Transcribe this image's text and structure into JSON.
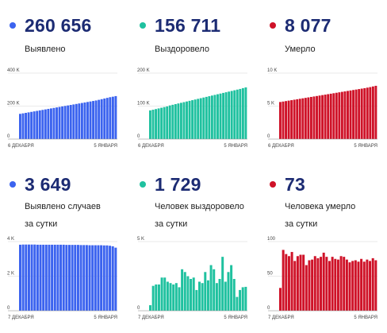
{
  "colors": {
    "blue": "#3b63ef",
    "green": "#1fc19f",
    "red": "#cf1228",
    "number": "#1c2b73",
    "grid": "#d5d5d5"
  },
  "panels": [
    {
      "value": "260 656",
      "label_lines": [
        "Выявлено"
      ],
      "color": "#3b63ef",
      "chart_data": {
        "type": "bar",
        "series": [
          {
            "values": [
              153000,
              156000,
              159000,
              162000,
              165000,
              168000,
              171000,
              174000,
              177000,
              180000,
              183000,
              186000,
              189000,
              192000,
              195000,
              198000,
              201000,
              204000,
              207000,
              210000,
              213000,
              216000,
              219000,
              222000,
              225000,
              228000,
              231000,
              234000,
              238000,
              242000,
              246000,
              250000,
              254000,
              257000,
              260656
            ]
          }
        ],
        "ylim": [
          0,
          400000
        ],
        "yticks": [
          {
            "v": 0,
            "t": "0"
          },
          {
            "v": 200000,
            "t": "200 K"
          },
          {
            "v": 400000,
            "t": "400 K"
          }
        ],
        "xlabels": [
          "6 ДЕКАБРЯ",
          "5 ЯНВАРЯ"
        ],
        "color": "#3b63ef"
      }
    },
    {
      "value": "156 711",
      "label_lines": [
        "Выздоровело"
      ],
      "color": "#1fc19f",
      "chart_data": {
        "type": "bar",
        "series": [
          {
            "values": [
              87000,
              89000,
              91000,
              93000,
              95000,
              97000,
              99000,
              102000,
              104000,
              106000,
              108000,
              110000,
              112000,
              114000,
              116000,
              118000,
              120000,
              122000,
              124000,
              126000,
              128000,
              130000,
              132000,
              134000,
              136000,
              138000,
              140000,
              142000,
              144000,
              146000,
              148000,
              150000,
              152000,
              154500,
              156711
            ]
          }
        ],
        "ylim": [
          0,
          200000
        ],
        "yticks": [
          {
            "v": 0,
            "t": "0"
          },
          {
            "v": 100000,
            "t": "100 K"
          },
          {
            "v": 200000,
            "t": "200 K"
          }
        ],
        "xlabels": [
          "6 ДЕКАБРЯ",
          "5 ЯНВАРЯ"
        ],
        "color": "#1fc19f"
      }
    },
    {
      "value": "8 077",
      "label_lines": [
        "Умерло"
      ],
      "color": "#cf1228",
      "chart_data": {
        "type": "bar",
        "series": [
          {
            "values": [
              5620,
              5690,
              5760,
              5830,
              5900,
              5970,
              6040,
              6110,
              6180,
              6250,
              6320,
              6390,
              6460,
              6530,
              6600,
              6670,
              6740,
              6810,
              6880,
              6950,
              7020,
              7090,
              7160,
              7230,
              7300,
              7370,
              7440,
              7510,
              7580,
              7650,
              7720,
              7800,
              7880,
              7980,
              8077
            ]
          }
        ],
        "ylim": [
          0,
          10000
        ],
        "yticks": [
          {
            "v": 0,
            "t": "0"
          },
          {
            "v": 5000,
            "t": "5 K"
          },
          {
            "v": 10000,
            "t": "10 K"
          }
        ],
        "xlabels": [
          "6 ДЕКАБРЯ",
          "5 ЯНВАРЯ"
        ],
        "color": "#cf1228"
      }
    },
    {
      "value": "3 649",
      "label_lines": [
        "Выявлено случаев",
        "за сутки"
      ],
      "color": "#3b63ef",
      "chart_data": {
        "type": "bar",
        "series": [
          {
            "values": [
              3820,
              3830,
              3830,
              3830,
              3830,
              3830,
              3820,
              3820,
              3820,
              3820,
              3820,
              3820,
              3820,
              3820,
              3820,
              3820,
              3810,
              3810,
              3810,
              3810,
              3810,
              3800,
              3800,
              3800,
              3790,
              3790,
              3790,
              3790,
              3790,
              3780,
              3780,
              3760,
              3730,
              3649
            ]
          }
        ],
        "ylim": [
          0,
          4000
        ],
        "yticks": [
          {
            "v": 0,
            "t": "0"
          },
          {
            "v": 2000,
            "t": "2 K"
          },
          {
            "v": 4000,
            "t": "4 K"
          }
        ],
        "xlabels": [
          "7 ДЕКАБРЯ",
          "5 ЯНВАРЯ"
        ],
        "color": "#3b63ef"
      }
    },
    {
      "value": "1 729",
      "label_lines": [
        "Человек выздоровело",
        "за сутки"
      ],
      "color": "#1fc19f",
      "chart_data": {
        "type": "bar",
        "series": [
          {
            "values": [
              400,
              1800,
              1900,
              1900,
              2400,
              2400,
              2100,
              2000,
              1900,
              2000,
              1700,
              3000,
              2800,
              2500,
              2300,
              2400,
              1500,
              2100,
              2000,
              2800,
              2200,
              3300,
              3000,
              2000,
              2300,
              3900,
              2100,
              2800,
              3300,
              2300,
              1000,
              1500,
              1700,
              1729
            ]
          }
        ],
        "ylim": [
          0,
          5000
        ],
        "yticks": [
          {
            "v": 0,
            "t": "0"
          },
          {
            "v": 5000,
            "t": "5 K"
          }
        ],
        "xlabels": [
          "7 ДЕКАБРЯ",
          "5 ЯНВАРЯ"
        ],
        "color": "#1fc19f"
      }
    },
    {
      "value": "73",
      "label_lines": [
        "Человека умерло",
        "за сутки"
      ],
      "color": "#cf1228",
      "chart_data": {
        "type": "bar",
        "series": [
          {
            "values": [
              33,
              88,
              82,
              79,
              85,
              72,
              79,
              81,
              81,
              66,
              73,
              74,
              79,
              76,
              78,
              84,
              78,
              72,
              78,
              75,
              74,
              79,
              78,
              74,
              70,
              72,
              73,
              71,
              75,
              71,
              74,
              72,
              76,
              73
            ]
          }
        ],
        "ylim": [
          0,
          100
        ],
        "yticks": [
          {
            "v": 0,
            "t": "0"
          },
          {
            "v": 50,
            "t": "50"
          },
          {
            "v": 100,
            "t": "100"
          }
        ],
        "xlabels": [
          "7 ДЕКАБРЯ",
          "5 ЯНВАРЯ"
        ],
        "color": "#cf1228"
      }
    }
  ]
}
